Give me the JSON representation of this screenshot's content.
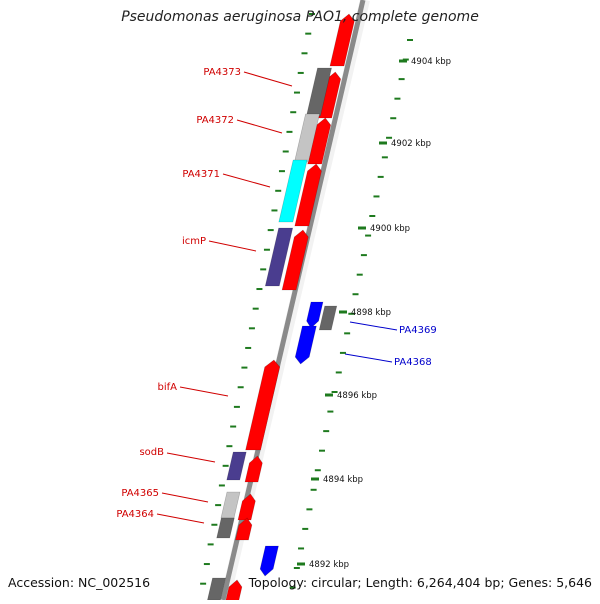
{
  "title": "Pseudomonas aeruginosa PAO1, complete genome",
  "accession": "Accession: NC_002516",
  "summary": "Topology: circular; Length: 6,264,404 bp; Genes: 5,646",
  "colors": {
    "backbone": "#8a8a8a",
    "tick": "#1e7a1e",
    "red_gene": "#ff0000",
    "blue_gene": "#0000ff",
    "navy_gene": "#4a3d8f",
    "gray_dark": "#666666",
    "gray_light": "#c4c4c4",
    "cyan_gene": "#00ffff",
    "label_red": "#d00000",
    "label_blue": "#0000cc",
    "kbp_label": "#111111"
  },
  "scale_labels": [
    "4904 kbp",
    "4902 kbp",
    "4900 kbp",
    "4898 kbp",
    "4896 kbp",
    "4894 kbp",
    "4892 kbp"
  ],
  "gene_labels_left": [
    "PA4373",
    "PA4372",
    "PA4371",
    "icmP",
    "bifA",
    "sodB",
    "PA4365",
    "PA4364"
  ],
  "gene_labels_right": [
    "PA4369",
    "PA4368"
  ]
}
